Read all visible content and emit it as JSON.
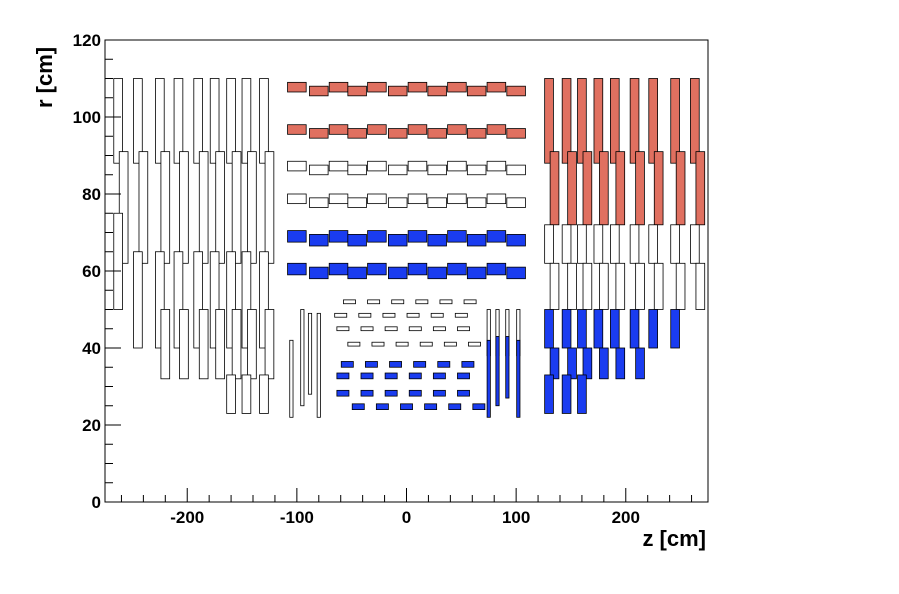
{
  "chart_data": {
    "type": "scatter",
    "xlabel": "z [cm]",
    "ylabel": "r [cm]",
    "xlim": [
      -275,
      275
    ],
    "ylim": [
      0,
      120
    ],
    "xticks": [
      -200,
      -100,
      0,
      100,
      200
    ],
    "xtick_labels": [
      "-200",
      "-100",
      "0",
      "100",
      "200"
    ],
    "yticks": [
      0,
      20,
      40,
      60,
      80,
      100,
      120
    ],
    "ytick_labels": [
      "0",
      "20",
      "40",
      "60",
      "80",
      "100",
      "120"
    ],
    "grid": false,
    "colors": {
      "red": "#e07060",
      "blue": "#1a3cf0",
      "white": "#ffffff",
      "outline": "#000000"
    },
    "groups": [
      {
        "name": "barrel-outer-1",
        "fill": "red",
        "centers_x": [
          -100,
          -80,
          -62,
          -45,
          -27,
          -8,
          10,
          28,
          46,
          64,
          82,
          100
        ],
        "y_lo": 106.5,
        "y_hi": 109.0,
        "alt_y_lo": 105.5,
        "alt_y_hi": 108.0,
        "w": 17
      },
      {
        "name": "barrel-outer-2",
        "fill": "red",
        "centers_x": [
          -100,
          -80,
          -62,
          -45,
          -27,
          -8,
          10,
          28,
          46,
          64,
          82,
          100
        ],
        "y_lo": 95.5,
        "y_hi": 98.0,
        "alt_y_lo": 94.5,
        "alt_y_hi": 97.0,
        "w": 17
      },
      {
        "name": "barrel-mid-1",
        "fill": "white",
        "centers_x": [
          -100,
          -80,
          -62,
          -45,
          -27,
          -8,
          10,
          28,
          46,
          64,
          82,
          100
        ],
        "y_lo": 86.0,
        "y_hi": 88.5,
        "alt_y_lo": 85.0,
        "alt_y_hi": 87.5,
        "w": 17
      },
      {
        "name": "barrel-mid-2",
        "fill": "white",
        "centers_x": [
          -100,
          -80,
          -62,
          -45,
          -27,
          -8,
          10,
          28,
          46,
          64,
          82,
          100
        ],
        "y_lo": 77.5,
        "y_hi": 80.0,
        "alt_y_lo": 76.5,
        "alt_y_hi": 79.0,
        "w": 17
      },
      {
        "name": "barrel-inner-1",
        "fill": "blue",
        "centers_x": [
          -100,
          -80,
          -62,
          -45,
          -27,
          -8,
          10,
          28,
          46,
          64,
          82,
          100
        ],
        "y_lo": 67.5,
        "y_hi": 70.5,
        "alt_y_lo": 66.5,
        "alt_y_hi": 69.5,
        "w": 17
      },
      {
        "name": "barrel-inner-2",
        "fill": "blue",
        "centers_x": [
          -100,
          -80,
          -62,
          -45,
          -27,
          -8,
          10,
          28,
          46,
          64,
          82,
          100
        ],
        "y_lo": 59.0,
        "y_hi": 62.0,
        "alt_y_lo": 58.0,
        "alt_y_hi": 61.0,
        "w": 17
      }
    ],
    "small_rows": [
      {
        "name": "tib-1",
        "fill": "white",
        "centers_x": [
          -52,
          -30,
          -8,
          14,
          36,
          58
        ],
        "y_lo": 51.5,
        "y_hi": 52.5,
        "w": 11
      },
      {
        "name": "tib-2",
        "fill": "white",
        "centers_x": [
          -60,
          -38,
          -16,
          6,
          28,
          50
        ],
        "y_lo": 48.0,
        "y_hi": 49.0,
        "w": 11
      },
      {
        "name": "tib-3",
        "fill": "white",
        "centers_x": [
          -58,
          -36,
          -14,
          8,
          30,
          52
        ],
        "y_lo": 44.5,
        "y_hi": 45.5,
        "w": 11
      },
      {
        "name": "tib-4",
        "fill": "white",
        "centers_x": [
          -48,
          -26,
          -4,
          18,
          40,
          62
        ],
        "y_lo": 40.5,
        "y_hi": 41.5,
        "w": 11
      },
      {
        "name": "tib-5",
        "fill": "blue",
        "centers_x": [
          -54,
          -32,
          -10,
          12,
          34,
          56
        ],
        "y_lo": 35.0,
        "y_hi": 36.5,
        "w": 11
      },
      {
        "name": "tib-6",
        "fill": "blue",
        "centers_x": [
          -58,
          -36,
          -14,
          8,
          30,
          52
        ],
        "y_lo": 32.0,
        "y_hi": 33.5,
        "w": 11
      },
      {
        "name": "tib-7",
        "fill": "blue",
        "centers_x": [
          -58,
          -36,
          -14,
          8,
          30,
          52
        ],
        "y_lo": 27.5,
        "y_hi": 29.0,
        "w": 11
      },
      {
        "name": "tib-8",
        "fill": "blue",
        "centers_x": [
          -44,
          -22,
          0,
          22,
          44,
          66
        ],
        "y_lo": 24.0,
        "y_hi": 25.5,
        "w": 11
      }
    ],
    "endcap_columns_left": [
      {
        "z": -263,
        "segments": [
          [
            88,
            110
          ],
          [
            62,
            91
          ],
          [
            50,
            75
          ]
        ]
      },
      {
        "z": -245,
        "segments": [
          [
            88,
            110
          ],
          [
            62,
            91
          ],
          [
            40,
            65
          ]
        ]
      },
      {
        "z": -225,
        "segments": [
          [
            88,
            110
          ],
          [
            62,
            91
          ],
          [
            40,
            65
          ],
          [
            32,
            50
          ]
        ]
      },
      {
        "z": -208,
        "segments": [
          [
            88,
            110
          ],
          [
            62,
            91
          ],
          [
            40,
            65
          ],
          [
            32,
            50
          ]
        ]
      },
      {
        "z": -190,
        "segments": [
          [
            88,
            110
          ],
          [
            62,
            91
          ],
          [
            40,
            65
          ],
          [
            32,
            50
          ]
        ]
      },
      {
        "z": -175,
        "segments": [
          [
            88,
            110
          ],
          [
            62,
            91
          ],
          [
            40,
            65
          ],
          [
            32,
            50
          ]
        ]
      },
      {
        "z": -160,
        "segments": [
          [
            88,
            110
          ],
          [
            62,
            91
          ],
          [
            40,
            65
          ],
          [
            32,
            50
          ],
          [
            23,
            33
          ]
        ]
      },
      {
        "z": -146,
        "segments": [
          [
            88,
            110
          ],
          [
            62,
            91
          ],
          [
            40,
            65
          ],
          [
            32,
            50
          ],
          [
            23,
            33
          ]
        ]
      },
      {
        "z": -130,
        "segments": [
          [
            88,
            110
          ],
          [
            62,
            91
          ],
          [
            40,
            65
          ],
          [
            32,
            50
          ],
          [
            23,
            33
          ]
        ]
      }
    ],
    "endcap_columns_right": [
      {
        "z": 130,
        "segments": [
          [
            88,
            110,
            "red"
          ],
          [
            72,
            91,
            "red"
          ],
          [
            62,
            72,
            "white"
          ],
          [
            50,
            62,
            "white"
          ],
          [
            40,
            50,
            "blue"
          ],
          [
            32,
            40,
            "blue"
          ],
          [
            23,
            33,
            "blue"
          ]
        ]
      },
      {
        "z": 146,
        "segments": [
          [
            88,
            110,
            "red"
          ],
          [
            72,
            91,
            "red"
          ],
          [
            62,
            72,
            "white"
          ],
          [
            50,
            62,
            "white"
          ],
          [
            40,
            50,
            "blue"
          ],
          [
            32,
            40,
            "blue"
          ],
          [
            23,
            33,
            "blue"
          ]
        ]
      },
      {
        "z": 160,
        "segments": [
          [
            88,
            110,
            "red"
          ],
          [
            72,
            91,
            "red"
          ],
          [
            62,
            72,
            "white"
          ],
          [
            50,
            62,
            "white"
          ],
          [
            40,
            50,
            "blue"
          ],
          [
            32,
            40,
            "blue"
          ],
          [
            23,
            33,
            "blue"
          ]
        ]
      },
      {
        "z": 175,
        "segments": [
          [
            88,
            110,
            "red"
          ],
          [
            72,
            91,
            "red"
          ],
          [
            62,
            72,
            "white"
          ],
          [
            50,
            62,
            "white"
          ],
          [
            40,
            50,
            "blue"
          ],
          [
            32,
            40,
            "blue"
          ]
        ]
      },
      {
        "z": 190,
        "segments": [
          [
            88,
            110,
            "red"
          ],
          [
            72,
            91,
            "red"
          ],
          [
            62,
            72,
            "white"
          ],
          [
            50,
            62,
            "white"
          ],
          [
            40,
            50,
            "blue"
          ],
          [
            32,
            40,
            "blue"
          ]
        ]
      },
      {
        "z": 208,
        "segments": [
          [
            88,
            110,
            "red"
          ],
          [
            72,
            91,
            "red"
          ],
          [
            62,
            72,
            "white"
          ],
          [
            50,
            62,
            "white"
          ],
          [
            40,
            50,
            "blue"
          ],
          [
            32,
            40,
            "blue"
          ]
        ]
      },
      {
        "z": 225,
        "segments": [
          [
            88,
            110,
            "red"
          ],
          [
            72,
            91,
            "red"
          ],
          [
            62,
            72,
            "white"
          ],
          [
            50,
            62,
            "white"
          ],
          [
            40,
            50,
            "blue"
          ]
        ]
      },
      {
        "z": 245,
        "segments": [
          [
            88,
            110,
            "red"
          ],
          [
            72,
            91,
            "red"
          ],
          [
            62,
            72,
            "white"
          ],
          [
            50,
            62,
            "white"
          ],
          [
            40,
            50,
            "blue"
          ]
        ]
      },
      {
        "z": 263,
        "segments": [
          [
            88,
            110,
            "red"
          ],
          [
            72,
            91,
            "red"
          ],
          [
            62,
            72,
            "white"
          ],
          [
            50,
            62,
            "white"
          ]
        ]
      }
    ],
    "inner_endcap_left": [
      {
        "z": -105,
        "segments": [
          [
            22,
            42
          ]
        ]
      },
      {
        "z": -95,
        "segments": [
          [
            25,
            50
          ]
        ]
      },
      {
        "z": -88,
        "segments": [
          [
            28,
            49
          ]
        ]
      },
      {
        "z": -80,
        "segments": [
          [
            22,
            49
          ]
        ]
      }
    ],
    "inner_endcap_right": [
      {
        "z": 75,
        "segments": [
          [
            38,
            50,
            "white"
          ],
          [
            22,
            42,
            "blue"
          ]
        ]
      },
      {
        "z": 83,
        "segments": [
          [
            38,
            50,
            "white"
          ],
          [
            25,
            43,
            "blue"
          ]
        ]
      },
      {
        "z": 92,
        "segments": [
          [
            38,
            50,
            "white"
          ],
          [
            27,
            43,
            "blue"
          ]
        ]
      },
      {
        "z": 102,
        "segments": [
          [
            38,
            50,
            "white"
          ],
          [
            22,
            42,
            "blue"
          ]
        ]
      }
    ]
  }
}
